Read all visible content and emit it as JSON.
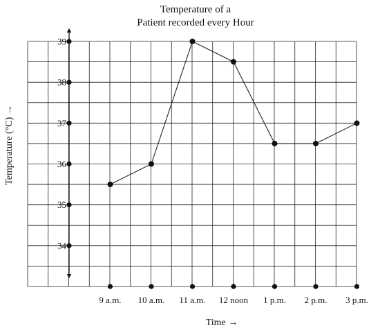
{
  "chart_data": {
    "type": "line",
    "title_lines": [
      "Temperature of a",
      "Patient recorded every Hour"
    ],
    "xlabel": "Time →",
    "ylabel": "Temperature (°C) →",
    "categories": [
      "9 a.m.",
      "10 a.m.",
      "11 a.m.",
      "12 noon",
      "1 p.m.",
      "2 p.m.",
      "3 p.m."
    ],
    "y_ticks": [
      "34",
      "35",
      "36",
      "37",
      "38",
      "39"
    ],
    "values": [
      35.5,
      36,
      39,
      38.5,
      36.5,
      36.5,
      37
    ],
    "ylim": [
      33,
      39
    ],
    "grid": true,
    "colors": {
      "line": "#222222",
      "grid": "#222222",
      "marker": "#111111"
    }
  }
}
